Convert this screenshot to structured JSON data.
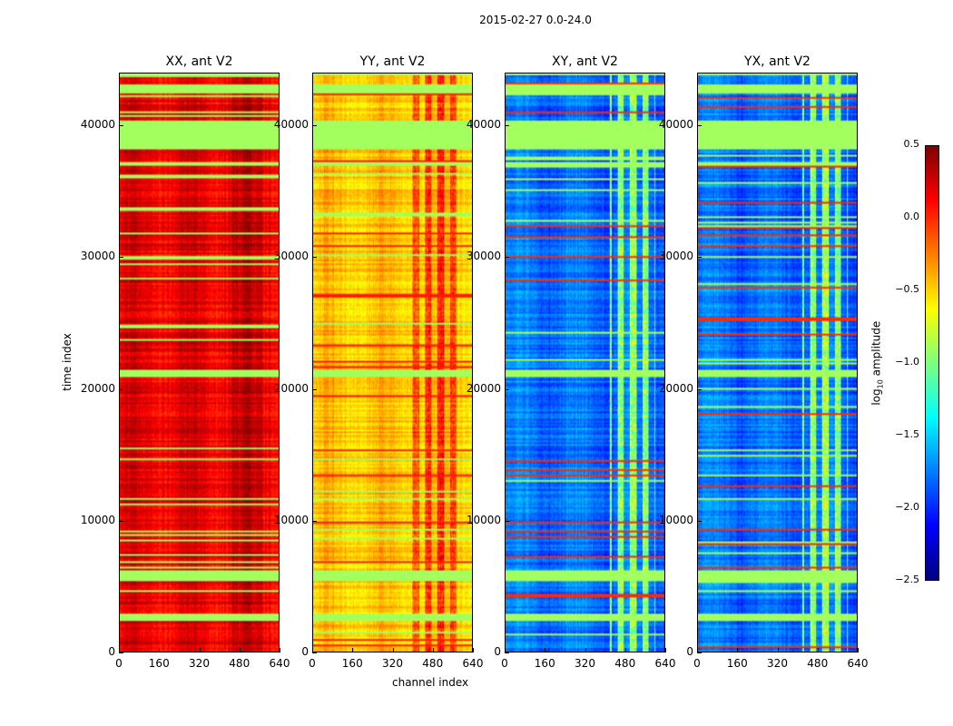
{
  "chart_data": {
    "type": "heatmap",
    "title": "2015-02-27 0.0-24.0",
    "xlabel": "channel index",
    "ylabel": "time index",
    "xlim": [
      0,
      640
    ],
    "ylim": [
      0,
      44000
    ],
    "xticks": [
      "0",
      "160",
      "320",
      "480",
      "640"
    ],
    "yticks": [
      "0",
      "10000",
      "20000",
      "30000",
      "40000"
    ],
    "ytick_values": [
      0,
      10000,
      20000,
      30000,
      40000
    ],
    "xtick_values": [
      0,
      160,
      320,
      480,
      640
    ],
    "panels": [
      {
        "title": "XX, ant V2",
        "base_log_amplitude": 0.2,
        "rfi_channel_range": [
          420,
          600
        ],
        "rfi_level": 0.35
      },
      {
        "title": "YY, ant V2",
        "base_log_amplitude": -0.45,
        "rfi_channel_range": [
          400,
          580
        ],
        "rfi_level": 0.1
      },
      {
        "title": "XY, ant V2",
        "base_log_amplitude": -1.8,
        "rfi_channel_range": [
          420,
          600
        ],
        "rfi_level": -0.7
      },
      {
        "title": "YX, ant V2",
        "base_log_amplitude": -1.8,
        "rfi_channel_range": [
          420,
          600
        ],
        "rfi_level": -0.7
      }
    ],
    "flagged_time_ranges": [
      [
        2400,
        3000
      ],
      [
        5500,
        6300
      ],
      [
        21000,
        21500
      ],
      [
        37000,
        37300
      ],
      [
        38300,
        40500
      ],
      [
        42500,
        43200
      ]
    ],
    "flagged_level": -0.9,
    "colorbar": {
      "label_prefix": "log",
      "label_sub": "10",
      "label_suffix": " amplitude",
      "range": [
        -2.5,
        0.5
      ],
      "colormap": "jet",
      "ticks": [
        "0.5",
        "0.0",
        "−0.5",
        "−1.0",
        "−1.5",
        "−2.0",
        "−2.5"
      ],
      "tick_values": [
        0.5,
        0.0,
        -0.5,
        -1.0,
        -1.5,
        -2.0,
        -2.5
      ]
    }
  }
}
